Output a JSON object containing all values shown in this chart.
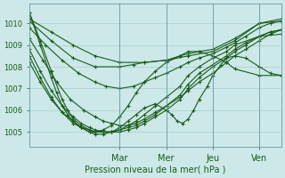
{
  "bg_color": "#cce8e8",
  "line_color": "#1a5c1a",
  "grid_color": "#aacccc",
  "ylabel_values": [
    1005,
    1006,
    1007,
    1008,
    1009,
    1010
  ],
  "ylim": [
    1004.3,
    1010.9
  ],
  "xlabel": "Pression niveau de la mer( hPa )",
  "xtick_labels": [
    "Mar",
    "Mer",
    "Jeu",
    "Ven"
  ],
  "xtick_positions": [
    0.33,
    0.5,
    0.67,
    0.84
  ],
  "xlim": [
    0.0,
    0.92
  ],
  "series": [
    {
      "x": [
        0.0,
        0.08,
        0.16,
        0.24,
        0.33,
        0.42,
        0.5,
        0.58,
        0.67,
        0.75,
        0.84,
        0.92
      ],
      "y": [
        1010.2,
        1009.6,
        1009.0,
        1008.5,
        1008.2,
        1008.2,
        1008.3,
        1008.5,
        1008.7,
        1009.2,
        1010.0,
        1010.1
      ]
    },
    {
      "x": [
        0.0,
        0.08,
        0.16,
        0.24,
        0.33,
        0.38,
        0.42,
        0.5,
        0.55,
        0.58,
        0.62,
        0.67,
        0.75,
        0.84,
        0.92
      ],
      "y": [
        1010.1,
        1009.2,
        1008.4,
        1008.0,
        1008.0,
        1008.1,
        1008.2,
        1008.3,
        1008.5,
        1008.6,
        1008.7,
        1008.8,
        1009.3,
        1010.0,
        1010.2
      ]
    },
    {
      "x": [
        0.0,
        0.06,
        0.12,
        0.18,
        0.24,
        0.28,
        0.33,
        0.38,
        0.42,
        0.46,
        0.5,
        0.55,
        0.58,
        0.62,
        0.67,
        0.72,
        0.75,
        0.79,
        0.84,
        0.88,
        0.92
      ],
      "y": [
        1009.8,
        1009.0,
        1008.3,
        1007.7,
        1007.3,
        1007.1,
        1007.0,
        1007.1,
        1007.3,
        1007.5,
        1007.7,
        1008.0,
        1008.2,
        1008.4,
        1008.6,
        1008.9,
        1009.1,
        1009.4,
        1009.8,
        1010.0,
        1010.1
      ]
    },
    {
      "x": [
        0.0,
        0.05,
        0.1,
        0.15,
        0.2,
        0.24,
        0.27,
        0.3,
        0.33,
        0.36,
        0.39,
        0.42,
        0.46,
        0.5,
        0.55,
        0.58,
        0.62,
        0.67,
        0.72,
        0.75,
        0.79,
        0.84,
        0.88,
        0.92
      ],
      "y": [
        1009.3,
        1008.3,
        1007.3,
        1006.5,
        1006.0,
        1005.7,
        1005.5,
        1005.4,
        1005.3,
        1005.3,
        1005.4,
        1005.6,
        1005.9,
        1006.2,
        1006.6,
        1006.9,
        1007.3,
        1007.7,
        1008.2,
        1008.5,
        1008.8,
        1009.2,
        1009.5,
        1009.7
      ]
    },
    {
      "x": [
        0.0,
        0.04,
        0.08,
        0.12,
        0.16,
        0.19,
        0.22,
        0.24,
        0.27,
        0.3,
        0.33,
        0.36,
        0.39,
        0.42,
        0.46,
        0.5,
        0.55,
        0.58,
        0.62,
        0.67,
        0.72,
        0.75,
        0.79,
        0.84,
        0.88,
        0.92
      ],
      "y": [
        1008.8,
        1007.8,
        1006.9,
        1006.2,
        1005.7,
        1005.4,
        1005.2,
        1005.1,
        1005.0,
        1005.0,
        1005.0,
        1005.1,
        1005.2,
        1005.4,
        1005.7,
        1006.0,
        1006.5,
        1007.0,
        1007.5,
        1008.0,
        1008.4,
        1008.7,
        1009.0,
        1009.4,
        1009.6,
        1009.7
      ]
    },
    {
      "x": [
        0.0,
        0.04,
        0.08,
        0.12,
        0.16,
        0.19,
        0.22,
        0.24,
        0.27,
        0.3,
        0.33,
        0.36,
        0.39,
        0.42,
        0.46,
        0.5,
        0.55,
        0.58,
        0.62,
        0.67,
        0.72,
        0.75,
        0.79,
        0.84,
        0.88,
        0.92
      ],
      "y": [
        1008.5,
        1007.5,
        1006.6,
        1005.9,
        1005.4,
        1005.2,
        1005.0,
        1005.0,
        1005.0,
        1005.0,
        1005.1,
        1005.2,
        1005.3,
        1005.5,
        1005.8,
        1006.2,
        1006.7,
        1007.2,
        1007.7,
        1008.1,
        1008.5,
        1008.8,
        1009.1,
        1009.4,
        1009.6,
        1009.7
      ]
    },
    {
      "x": [
        0.0,
        0.04,
        0.08,
        0.12,
        0.16,
        0.19,
        0.22,
        0.24,
        0.27,
        0.3,
        0.33,
        0.36,
        0.39,
        0.42,
        0.46,
        0.5,
        0.55,
        0.58,
        0.62,
        0.67,
        0.72,
        0.75,
        0.84,
        0.92
      ],
      "y": [
        1008.2,
        1007.3,
        1006.5,
        1005.9,
        1005.5,
        1005.2,
        1005.1,
        1005.0,
        1005.0,
        1005.0,
        1005.1,
        1005.3,
        1005.5,
        1005.8,
        1006.2,
        1006.6,
        1007.1,
        1007.6,
        1008.0,
        1008.4,
        1008.7,
        1009.0,
        1009.4,
        1009.5
      ]
    },
    {
      "x": [
        0.0,
        0.04,
        0.08,
        0.12,
        0.14,
        0.16,
        0.19,
        0.22,
        0.24,
        0.27,
        0.3,
        0.33,
        0.36,
        0.39,
        0.42,
        0.46,
        0.5,
        0.55,
        0.58,
        0.62,
        0.67,
        0.72,
        0.75,
        0.84,
        0.92
      ],
      "y": [
        1010.5,
        1009.2,
        1007.8,
        1006.5,
        1006.0,
        1005.6,
        1005.3,
        1005.1,
        1005.0,
        1005.1,
        1005.3,
        1005.7,
        1006.2,
        1006.8,
        1007.3,
        1007.8,
        1008.2,
        1008.5,
        1008.7,
        1008.7,
        1008.5,
        1008.2,
        1007.9,
        1007.6,
        1007.6
      ]
    },
    {
      "x": [
        0.0,
        0.04,
        0.08,
        0.1,
        0.12,
        0.14,
        0.16,
        0.19,
        0.22,
        0.24,
        0.27,
        0.3,
        0.33,
        0.36,
        0.39,
        0.42,
        0.46,
        0.5,
        0.52,
        0.54,
        0.56,
        0.58,
        0.6,
        0.62,
        0.65,
        0.67,
        0.7,
        0.72,
        0.75,
        0.79,
        0.84,
        0.88,
        0.92
      ],
      "y": [
        1010.5,
        1009.0,
        1007.5,
        1006.8,
        1006.2,
        1005.8,
        1005.5,
        1005.2,
        1005.0,
        1004.9,
        1004.9,
        1005.0,
        1005.2,
        1005.5,
        1005.8,
        1006.1,
        1006.3,
        1006.0,
        1005.8,
        1005.5,
        1005.4,
        1005.6,
        1006.0,
        1006.5,
        1007.1,
        1007.6,
        1008.1,
        1008.4,
        1008.5,
        1008.4,
        1008.0,
        1007.7,
        1007.6
      ]
    }
  ]
}
